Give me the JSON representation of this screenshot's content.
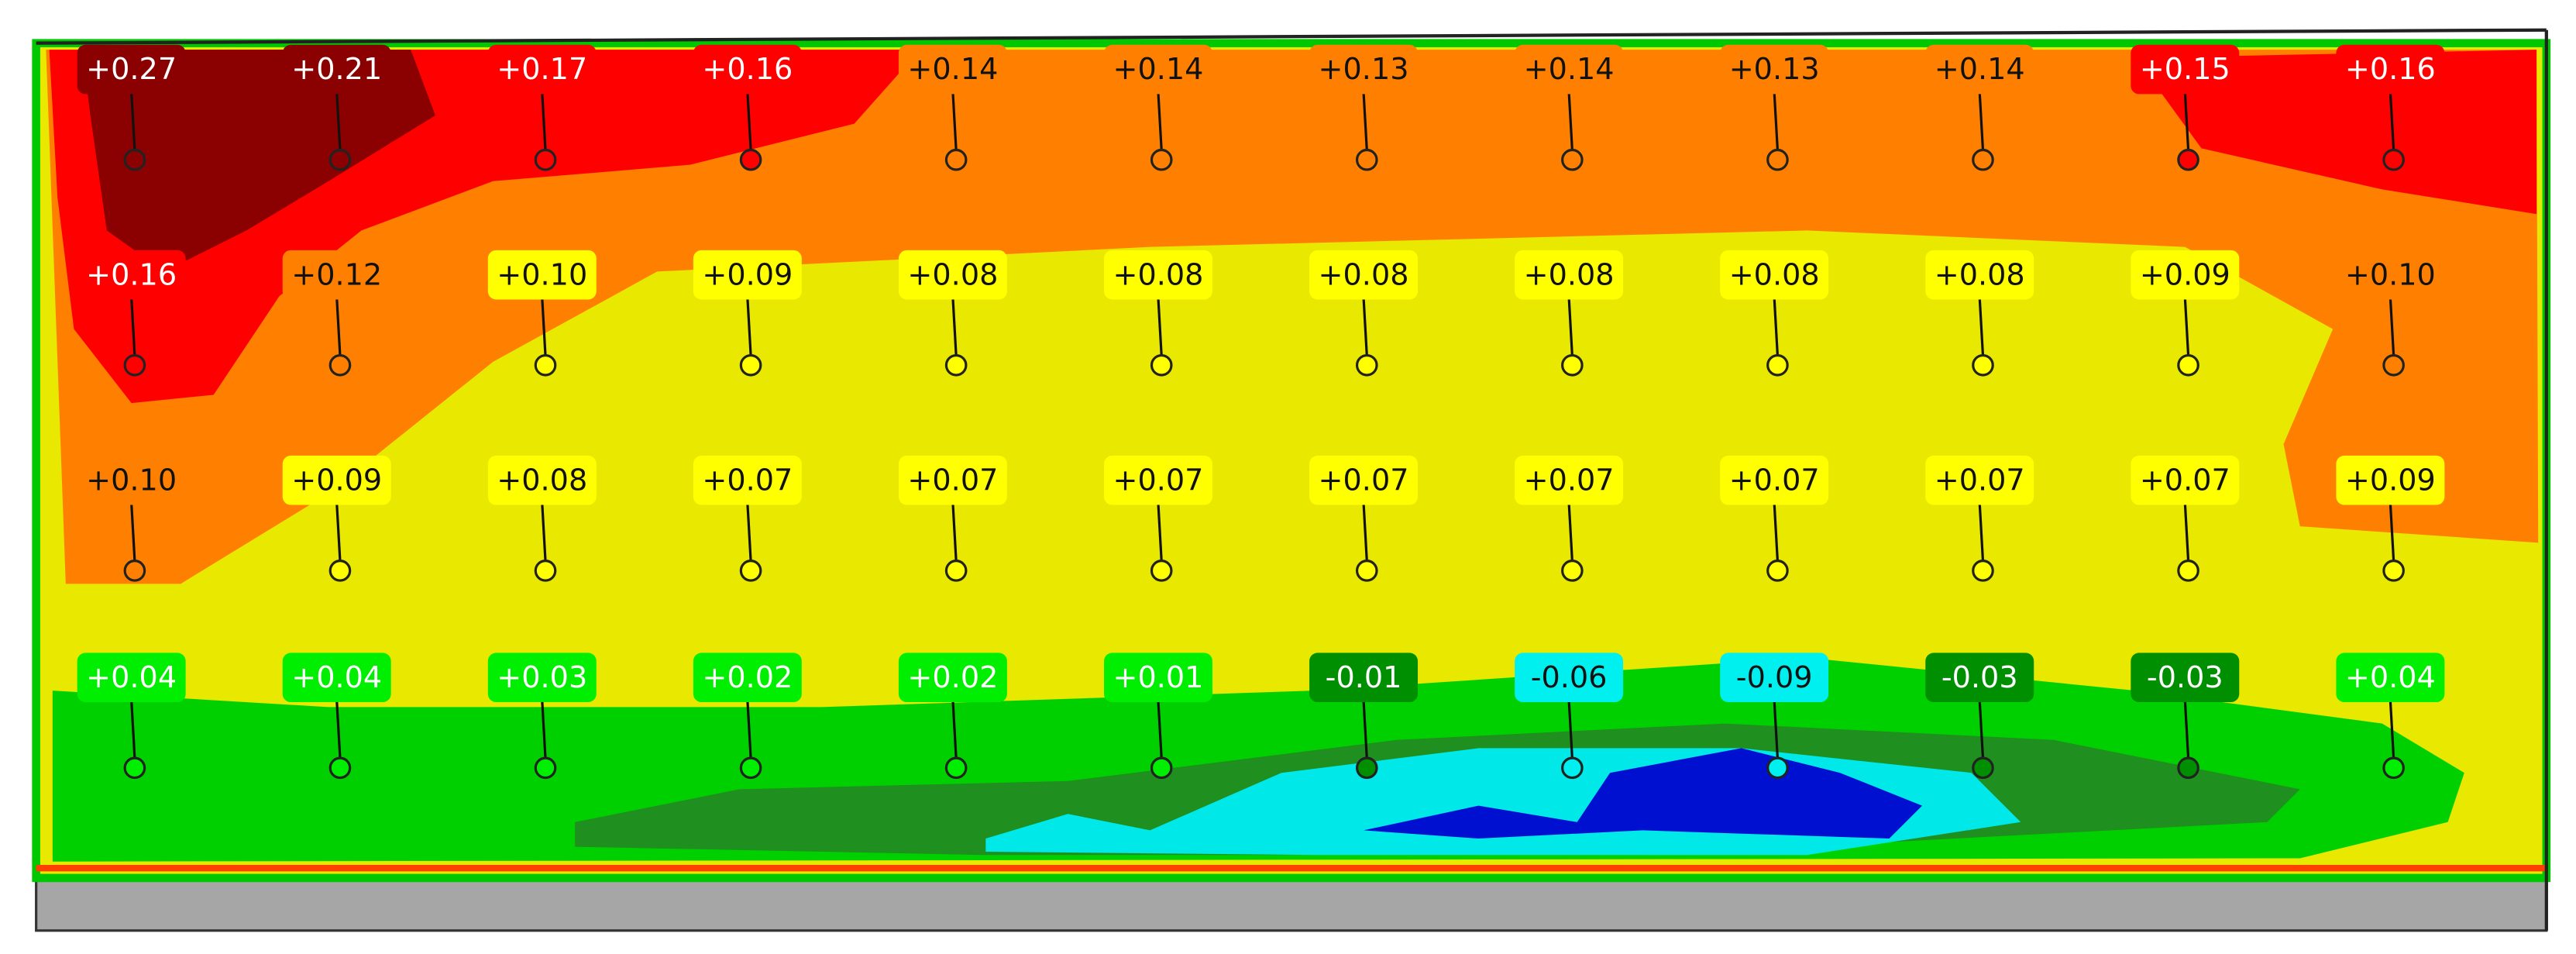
{
  "points": [
    [
      {
        "label": "+0.27",
        "color": "#8b0000"
      },
      {
        "label": "+0.21",
        "color": "#8b0000"
      },
      {
        "label": "+0.17",
        "color": "#ff0000"
      },
      {
        "label": "+0.16",
        "color": "#ff0000"
      },
      {
        "label": "+0.14",
        "color": "#ff8000"
      },
      {
        "label": "+0.14",
        "color": "#ff8000"
      },
      {
        "label": "+0.13",
        "color": "#ff8000"
      },
      {
        "label": "+0.14",
        "color": "#ff8000"
      },
      {
        "label": "+0.13",
        "color": "#ff8000"
      },
      {
        "label": "+0.14",
        "color": "#ff8000"
      },
      {
        "label": "+0.15",
        "color": "#ff0000"
      },
      {
        "label": "+0.16",
        "color": "#ff0000"
      }
    ],
    [
      {
        "label": "+0.16",
        "color": "#ff0000"
      },
      {
        "label": "+0.12",
        "color": "#ff8000"
      },
      {
        "label": "+0.10",
        "color": "#ffff00"
      },
      {
        "label": "+0.09",
        "color": "#ffff00"
      },
      {
        "label": "+0.08",
        "color": "#ffff00"
      },
      {
        "label": "+0.08",
        "color": "#ffff00"
      },
      {
        "label": "+0.08",
        "color": "#ffff00"
      },
      {
        "label": "+0.08",
        "color": "#ffff00"
      },
      {
        "label": "+0.08",
        "color": "#ffff00"
      },
      {
        "label": "+0.08",
        "color": "#ffff00"
      },
      {
        "label": "+0.09",
        "color": "#ffff00"
      },
      {
        "label": "+0.10",
        "color": "#ff8000"
      }
    ],
    [
      {
        "label": "+0.10",
        "color": "#ff8000"
      },
      {
        "label": "+0.09",
        "color": "#ffff00"
      },
      {
        "label": "+0.08",
        "color": "#ffff00"
      },
      {
        "label": "+0.07",
        "color": "#ffff00"
      },
      {
        "label": "+0.07",
        "color": "#ffff00"
      },
      {
        "label": "+0.07",
        "color": "#ffff00"
      },
      {
        "label": "+0.07",
        "color": "#ffff00"
      },
      {
        "label": "+0.07",
        "color": "#ffff00"
      },
      {
        "label": "+0.07",
        "color": "#ffff00"
      },
      {
        "label": "+0.07",
        "color": "#ffff00"
      },
      {
        "label": "+0.07",
        "color": "#ffff00"
      },
      {
        "label": "+0.09",
        "color": "#ffff00"
      }
    ],
    [
      {
        "label": "+0.04",
        "color": "#00ee00"
      },
      {
        "label": "+0.04",
        "color": "#00ee00"
      },
      {
        "label": "+0.03",
        "color": "#00ee00"
      },
      {
        "label": "+0.02",
        "color": "#00ee00"
      },
      {
        "label": "+0.02",
        "color": "#00ee00"
      },
      {
        "label": "+0.01",
        "color": "#00ee00"
      },
      {
        "label": "-0.01",
        "color": "#008f00"
      },
      {
        "label": "-0.06",
        "color": "#00f0f0"
      },
      {
        "label": "-0.09",
        "color": "#00f0f0"
      },
      {
        "label": "-0.03",
        "color": "#008f00"
      },
      {
        "label": "-0.03",
        "color": "#008f00"
      },
      {
        "label": "+0.04",
        "color": "#00ee00"
      }
    ]
  ]
}
